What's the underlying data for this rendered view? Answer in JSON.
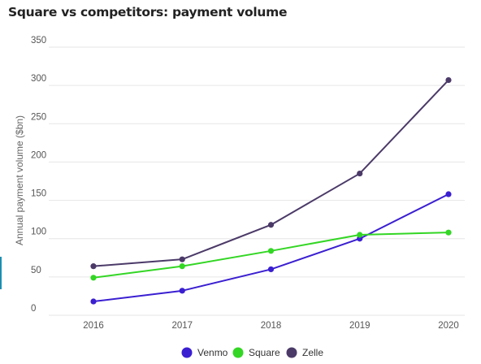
{
  "chart_data": {
    "type": "line",
    "title": "Square vs competitors: payment volume",
    "xlabel": "",
    "ylabel": "Annual payment volume ($bn)",
    "categories": [
      "2016",
      "2017",
      "2018",
      "2019",
      "2020"
    ],
    "ylim": [
      0,
      350
    ],
    "yticks": [
      0,
      50,
      100,
      150,
      200,
      250,
      300,
      350
    ],
    "grid": true,
    "legend_position": "bottom",
    "series": [
      {
        "name": "Venmo",
        "color": "#3a1fd1",
        "values": [
          18,
          32,
          60,
          100,
          158
        ]
      },
      {
        "name": "Square",
        "color": "#33d624",
        "values": [
          49,
          64,
          84,
          105,
          108
        ]
      },
      {
        "name": "Zelle",
        "color": "#4b3a68",
        "values": [
          64,
          73,
          118,
          185,
          307
        ]
      }
    ]
  }
}
